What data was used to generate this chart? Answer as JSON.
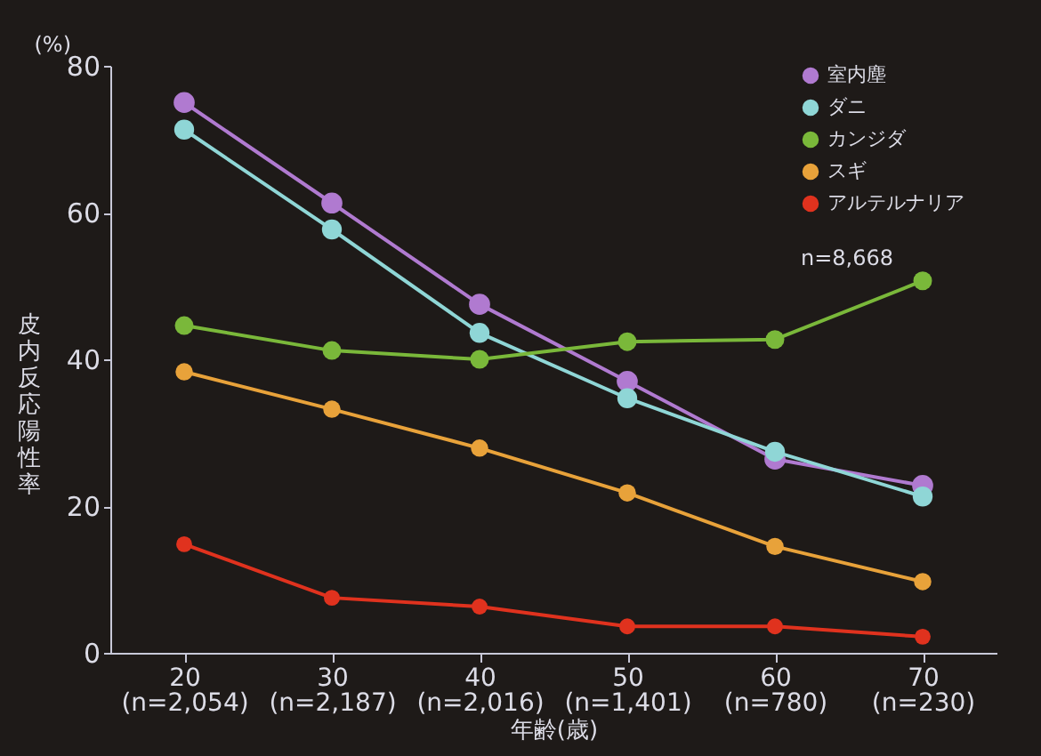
{
  "chart_data": {
    "type": "line",
    "xlabel": "年齢(歳)",
    "ylabel": "皮内反応陽性率",
    "categories": [
      "20\n(n=2,054)",
      "30\n(n=2,187)",
      "40\n(n=2,016)",
      "50\n(n=1,401)",
      "60\n(n=780)",
      "70\n(n=230)"
    ],
    "series": [
      {
        "name": "室内塵",
        "color": "#b07ad0",
        "values": [
          75,
          61.3,
          47.5,
          37,
          26.4,
          22.8
        ]
      },
      {
        "name": "ダニ",
        "color": "#8fd6d6",
        "values": [
          71.3,
          57.7,
          43.6,
          34.7,
          27.4,
          21.3
        ]
      },
      {
        "name": "カンジダ",
        "color": "#7ab83a",
        "values": [
          44.6,
          41.2,
          40,
          42.4,
          42.7,
          50.7
        ]
      },
      {
        "name": "スギ",
        "color": "#e8a23a",
        "values": [
          38.3,
          33.2,
          27.9,
          21.8,
          14.5,
          9.7
        ]
      },
      {
        "name": "アルテルナリア",
        "color": "#e0321e",
        "values": [
          14.8,
          7.5,
          6.3,
          3.6,
          3.6,
          2.2
        ]
      }
    ],
    "ylim": [
      0,
      80
    ],
    "yticks": [
      0,
      20,
      40,
      60,
      80
    ],
    "grid": false,
    "legend": "top right",
    "marker": "circle",
    "annotations": [
      "(%)",
      "n=8,668"
    ]
  }
}
